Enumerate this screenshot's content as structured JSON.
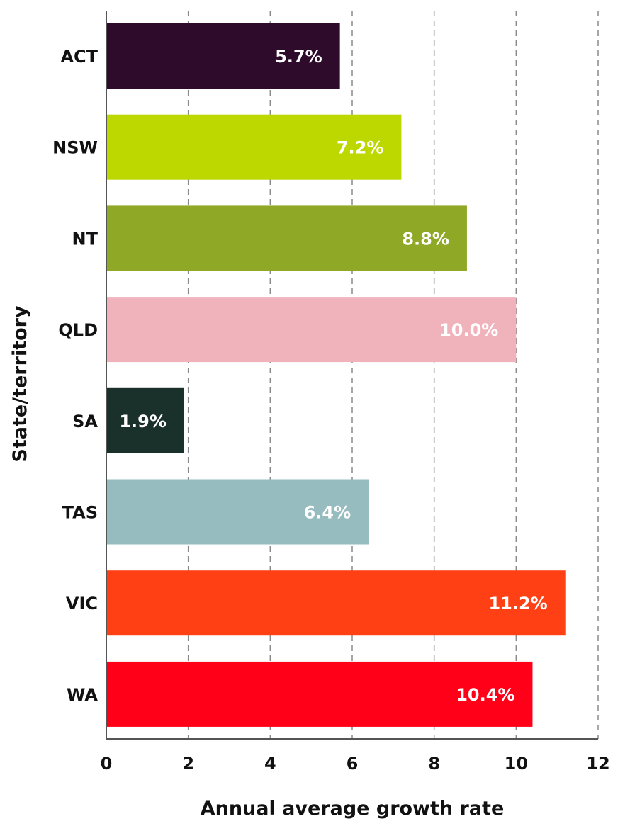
{
  "chart_data": {
    "type": "bar",
    "orientation": "horizontal",
    "categories": [
      "ACT",
      "NSW",
      "NT",
      "QLD",
      "SA",
      "TAS",
      "VIC",
      "WA"
    ],
    "values": [
      5.7,
      7.2,
      8.8,
      10.0,
      1.9,
      6.4,
      11.2,
      10.4
    ],
    "data_labels": [
      "5.7%",
      "7.2%",
      "8.8%",
      "10.0%",
      "1.9%",
      "6.4%",
      "11.2%",
      "10.4%"
    ],
    "bar_colors": [
      "#2e0b2b",
      "#bcd800",
      "#8fa825",
      "#f0b3bc",
      "#1a302a",
      "#97bcbf",
      "#ff4015",
      "#ff0018"
    ],
    "xlabel": "Annual average growth rate",
    "ylabel": "State/territory",
    "xlim": [
      0,
      12
    ],
    "xticks": [
      0,
      2,
      4,
      6,
      8,
      10,
      12
    ],
    "grid": "vertical dashed"
  }
}
